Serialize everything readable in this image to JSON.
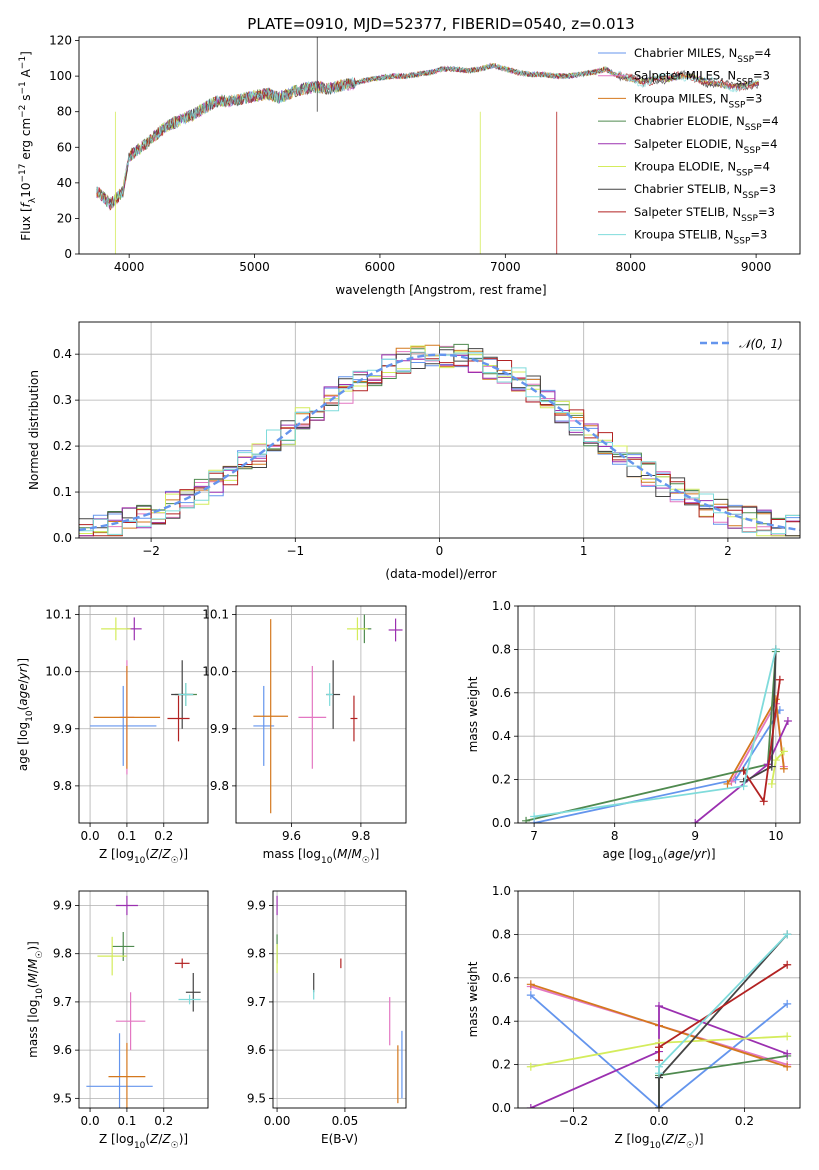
{
  "title": "PLATE=0910, MJD=52377, FIBERID=0540, z=0.013",
  "models": [
    {
      "name": "Chabrier MILES",
      "nssp": "4",
      "color": "#6495ed"
    },
    {
      "name": "Salpeter MILES",
      "nssp": "3",
      "color": "#e377c2"
    },
    {
      "name": "Kroupa MILES",
      "nssp": "3",
      "color": "#d4781e"
    },
    {
      "name": "Chabrier ELODIE",
      "nssp": "4",
      "color": "#4f8a4f"
    },
    {
      "name": "Salpeter ELODIE",
      "nssp": "4",
      "color": "#9b30b0"
    },
    {
      "name": "Kroupa ELODIE",
      "nssp": "4",
      "color": "#d4ec5c"
    },
    {
      "name": "Chabrier STELIB",
      "nssp": "3",
      "color": "#444444"
    },
    {
      "name": "Salpeter STELIB",
      "nssp": "3",
      "color": "#b22222"
    },
    {
      "name": "Kroupa STELIB",
      "nssp": "3",
      "color": "#7fdbdb"
    }
  ],
  "chart_data": [
    {
      "id": "spectrum",
      "type": "line",
      "xlabel": "wavelength [Angstrom, rest frame]",
      "ylabel": "Flux [f_λ 10^-17 erg cm^-2 s^-1 A^-1]",
      "xlim": [
        3600,
        9350
      ],
      "ylim": [
        0,
        122
      ],
      "xticks": [
        4000,
        5000,
        6000,
        7000,
        8000,
        9000
      ],
      "yticks": [
        0,
        20,
        40,
        60,
        80,
        100,
        120
      ],
      "grid": false,
      "legend": "top-right",
      "x": [
        3750,
        3850,
        3950,
        4000,
        4100,
        4200,
        4300,
        4400,
        4500,
        4600,
        4700,
        4800,
        4900,
        5000,
        5100,
        5200,
        5300,
        5400,
        5500,
        5600,
        5700,
        5800,
        5900,
        6000,
        6100,
        6200,
        6300,
        6400,
        6500,
        6600,
        6700,
        6800,
        6900,
        7000,
        7100,
        7200,
        7300,
        7400,
        7500,
        7600,
        7700,
        7800,
        7900,
        8000,
        8100,
        8200,
        8300,
        8400,
        8500,
        8600,
        8700,
        8800,
        8900,
        9000
      ],
      "y": [
        35,
        28,
        35,
        55,
        60,
        66,
        72,
        75,
        78,
        82,
        86,
        86,
        87,
        89,
        90,
        88,
        91,
        93,
        94,
        93,
        95,
        96,
        98,
        99,
        100,
        100,
        101,
        102,
        104,
        104,
        103,
        104,
        106,
        104,
        102,
        101,
        101,
        100,
        100,
        101,
        102,
        104,
        100,
        98,
        97,
        99,
        98,
        100,
        100,
        97,
        95,
        94,
        95,
        96
      ]
    },
    {
      "id": "residual-histogram",
      "type": "bar",
      "xlabel": "(data-model)/error",
      "ylabel": "Normed distribution",
      "xlim": [
        -2.5,
        2.5
      ],
      "ylim": [
        0,
        0.47
      ],
      "xticks": [
        -2,
        -1,
        0,
        1,
        2
      ],
      "yticks": [
        0.0,
        0.1,
        0.2,
        0.3,
        0.4
      ],
      "grid": true,
      "legend": "top-right",
      "reference": {
        "name": "𝒩(0, 1)",
        "mean": 0,
        "sd": 1,
        "color": "#6495ed"
      },
      "bin_width": 0.1,
      "bin_start": -2.5
    },
    {
      "id": "age-vs-Z",
      "type": "scatter",
      "xlabel": "Z [log10(Z/Z☉)]",
      "ylabel": "age  [log10(age/yr)]",
      "xlim": [
        -0.03,
        0.32
      ],
      "ylim": [
        9.735,
        10.115
      ],
      "xticks": [
        0.0,
        0.1,
        0.2
      ],
      "yticks": [
        9.8,
        9.9,
        10.0,
        10.1
      ],
      "grid": true,
      "points": [
        {
          "m": 0,
          "x": 0.09,
          "y": 9.905,
          "ex": 0.09,
          "ey": 0.07
        },
        {
          "m": 1,
          "x": 0.1,
          "y": 9.92,
          "ex": 0.02,
          "ey": 0.1
        },
        {
          "m": 2,
          "x": 0.1,
          "y": 9.92,
          "ex": 0.09,
          "ey": 0.09
        },
        {
          "m": 3,
          "x": 0.26,
          "y": 9.96,
          "ex": 0.03,
          "ey": 0.02
        },
        {
          "m": 4,
          "x": 0.12,
          "y": 10.075,
          "ex": 0.02,
          "ey": 0.02
        },
        {
          "m": 5,
          "x": 0.07,
          "y": 10.075,
          "ex": 0.04,
          "ey": 0.02
        },
        {
          "m": 6,
          "x": 0.25,
          "y": 9.96,
          "ex": 0.03,
          "ey": 0.06
        },
        {
          "m": 7,
          "x": 0.24,
          "y": 9.918,
          "ex": 0.03,
          "ey": 0.04
        },
        {
          "m": 8,
          "x": 0.26,
          "y": 9.96,
          "ex": 0.02,
          "ey": 0.02
        }
      ]
    },
    {
      "id": "age-vs-mass",
      "type": "scatter",
      "xlabel": "mass [log10(M/M☉)]",
      "ylabel": "",
      "xlim": [
        9.44,
        9.93
      ],
      "ylim": [
        9.735,
        10.115
      ],
      "xticks": [
        9.6,
        9.8
      ],
      "yticks": [
        9.8,
        9.9,
        10.0,
        10.1
      ],
      "grid": true,
      "points": [
        {
          "m": 0,
          "x": 9.52,
          "y": 9.905,
          "ex": 0.03,
          "ey": 0.07
        },
        {
          "m": 1,
          "x": 9.66,
          "y": 9.92,
          "ex": 0.04,
          "ey": 0.09
        },
        {
          "m": 2,
          "x": 9.54,
          "y": 9.922,
          "ex": 0.05,
          "ey": 0.17
        },
        {
          "m": 3,
          "x": 9.81,
          "y": 10.075,
          "ex": 0.02,
          "ey": 0.025
        },
        {
          "m": 4,
          "x": 9.9,
          "y": 10.073,
          "ex": 0.02,
          "ey": 0.02
        },
        {
          "m": 5,
          "x": 9.79,
          "y": 10.075,
          "ex": 0.03,
          "ey": 0.02
        },
        {
          "m": 6,
          "x": 9.72,
          "y": 9.96,
          "ex": 0.02,
          "ey": 0.06
        },
        {
          "m": 7,
          "x": 9.78,
          "y": 9.918,
          "ex": 0.01,
          "ey": 0.04
        },
        {
          "m": 8,
          "x": 9.71,
          "y": 9.96,
          "ex": 0.01,
          "ey": 0.02
        }
      ]
    },
    {
      "id": "weight-vs-age",
      "type": "line",
      "xlabel": "age  [log10(age/yr)]",
      "ylabel": "mass weight",
      "xlim": [
        6.8,
        10.3
      ],
      "ylim": [
        0,
        1.0
      ],
      "xticks": [
        7,
        8,
        9,
        10
      ],
      "yticks": [
        0.0,
        0.2,
        0.4,
        0.6,
        0.8,
        1.0
      ],
      "grid": true,
      "series": [
        {
          "m": 0,
          "x": [
            7.0,
            9.5,
            10.05
          ],
          "y": [
            0.0,
            0.2,
            0.52
          ]
        },
        {
          "m": 1,
          "x": [
            9.45,
            10.0,
            10.1
          ],
          "y": [
            0.19,
            0.55,
            0.26
          ]
        },
        {
          "m": 2,
          "x": [
            9.4,
            10.0,
            10.1
          ],
          "y": [
            0.18,
            0.57,
            0.25
          ]
        },
        {
          "m": 3,
          "x": [
            6.9,
            9.9,
            10.0
          ],
          "y": [
            0.01,
            0.27,
            0.79
          ]
        },
        {
          "m": 4,
          "x": [
            9.0,
            9.9,
            10.15
          ],
          "y": [
            0.0,
            0.27,
            0.47
          ]
        },
        {
          "m": 5,
          "x": [
            9.95,
            10.0,
            10.1
          ],
          "y": [
            0.18,
            0.29,
            0.33
          ]
        },
        {
          "m": 6,
          "x": [
            9.6,
            9.95,
            10.0
          ],
          "y": [
            0.19,
            0.26,
            0.8
          ]
        },
        {
          "m": 7,
          "x": [
            9.6,
            9.85,
            10.05
          ],
          "y": [
            0.24,
            0.1,
            0.66
          ]
        },
        {
          "m": 8,
          "x": [
            7.0,
            9.6,
            10.0
          ],
          "y": [
            0.03,
            0.17,
            0.8
          ]
        }
      ]
    },
    {
      "id": "mass-vs-Z",
      "type": "scatter",
      "xlabel": "Z [log10(Z/Z☉)]",
      "ylabel": "mass [log10(M/M☉)]",
      "xlim": [
        -0.03,
        0.32
      ],
      "ylim": [
        9.48,
        9.93
      ],
      "xticks": [
        0.0,
        0.1,
        0.2
      ],
      "yticks": [
        9.5,
        9.6,
        9.7,
        9.8,
        9.9
      ],
      "grid": true,
      "points": [
        {
          "m": 0,
          "x": 0.08,
          "y": 9.525,
          "ex": 0.09,
          "ey": 0.11
        },
        {
          "m": 1,
          "x": 0.11,
          "y": 9.66,
          "ex": 0.04,
          "ey": 0.06
        },
        {
          "m": 2,
          "x": 0.1,
          "y": 9.545,
          "ex": 0.05,
          "ey": 0.07
        },
        {
          "m": 3,
          "x": 0.09,
          "y": 9.815,
          "ex": 0.03,
          "ey": 0.03
        },
        {
          "m": 4,
          "x": 0.1,
          "y": 9.9,
          "ex": 0.03,
          "ey": 0.02
        },
        {
          "m": 5,
          "x": 0.06,
          "y": 9.795,
          "ex": 0.04,
          "ey": 0.04
        },
        {
          "m": 6,
          "x": 0.28,
          "y": 9.72,
          "ex": 0.02,
          "ey": 0.04
        },
        {
          "m": 7,
          "x": 0.25,
          "y": 9.78,
          "ex": 0.02,
          "ey": 0.01
        },
        {
          "m": 8,
          "x": 0.27,
          "y": 9.705,
          "ex": 0.03,
          "ey": 0.01
        }
      ]
    },
    {
      "id": "mass-vs-ebv",
      "type": "scatter",
      "xlabel": "E(B-V)",
      "ylabel": "",
      "xlim": [
        -0.003,
        0.095
      ],
      "ylim": [
        9.48,
        9.93
      ],
      "xticks": [
        0.0,
        0.05
      ],
      "yticks": [
        9.5,
        9.6,
        9.7,
        9.8,
        9.9
      ],
      "grid": true,
      "points": [
        {
          "m": 0,
          "x": 0.092,
          "y": 9.57,
          "ex": 0,
          "ey": 0.07
        },
        {
          "m": 1,
          "x": 0.083,
          "y": 9.66,
          "ex": 0,
          "ey": 0.05
        },
        {
          "m": 2,
          "x": 0.089,
          "y": 9.55,
          "ex": 0,
          "ey": 0.06
        },
        {
          "m": 3,
          "x": 0.0,
          "y": 9.81,
          "ex": 0,
          "ey": 0.03
        },
        {
          "m": 4,
          "x": 0.0,
          "y": 9.9,
          "ex": 0,
          "ey": 0.02
        },
        {
          "m": 5,
          "x": 0.0,
          "y": 9.79,
          "ex": 0,
          "ey": 0.03
        },
        {
          "m": 6,
          "x": 0.027,
          "y": 9.74,
          "ex": 0,
          "ey": 0.02
        },
        {
          "m": 7,
          "x": 0.047,
          "y": 9.78,
          "ex": 0,
          "ey": 0.01
        },
        {
          "m": 8,
          "x": 0.027,
          "y": 9.715,
          "ex": 0,
          "ey": 0.01
        }
      ]
    },
    {
      "id": "weight-vs-Z",
      "type": "line",
      "xlabel": "Z [log10(Z/Z☉)]",
      "ylabel": "mass weight",
      "xlim": [
        -0.33,
        0.33
      ],
      "ylim": [
        0,
        1.0
      ],
      "xticks": [
        -0.2,
        0.0,
        0.2
      ],
      "yticks": [
        0.0,
        0.2,
        0.4,
        0.6,
        0.8,
        1.0
      ],
      "grid": true,
      "series": [
        {
          "m": 0,
          "x": [
            -0.3,
            0.0,
            0.3
          ],
          "y": [
            0.52,
            0.0,
            0.48
          ]
        },
        {
          "m": 1,
          "x": [
            -0.3,
            0.0,
            0.3
          ],
          "y": [
            0.56,
            0.38,
            0.2
          ]
        },
        {
          "m": 2,
          "x": [
            -0.3,
            0.0,
            0.3
          ],
          "y": [
            0.57,
            0.38,
            0.19
          ]
        },
        {
          "m": 3,
          "x": [
            0.0,
            0.0,
            0.3
          ],
          "y": [
            0.0,
            0.15,
            0.24
          ]
        },
        {
          "m": 4,
          "x": [
            -0.3,
            0.0,
            0.0,
            0.3
          ],
          "y": [
            0.0,
            0.26,
            0.47,
            0.25
          ]
        },
        {
          "m": 5,
          "x": [
            -0.3,
            0.0,
            0.3
          ],
          "y": [
            0.19,
            0.3,
            0.33
          ]
        },
        {
          "m": 6,
          "x": [
            0.0,
            0.0,
            0.3
          ],
          "y": [
            0.0,
            0.14,
            0.8
          ]
        },
        {
          "m": 7,
          "x": [
            0.0,
            0.0,
            0.3
          ],
          "y": [
            0.22,
            0.28,
            0.66
          ]
        },
        {
          "m": 8,
          "x": [
            0.0,
            0.0,
            0.3
          ],
          "y": [
            0.16,
            0.19,
            0.8
          ]
        }
      ]
    }
  ]
}
